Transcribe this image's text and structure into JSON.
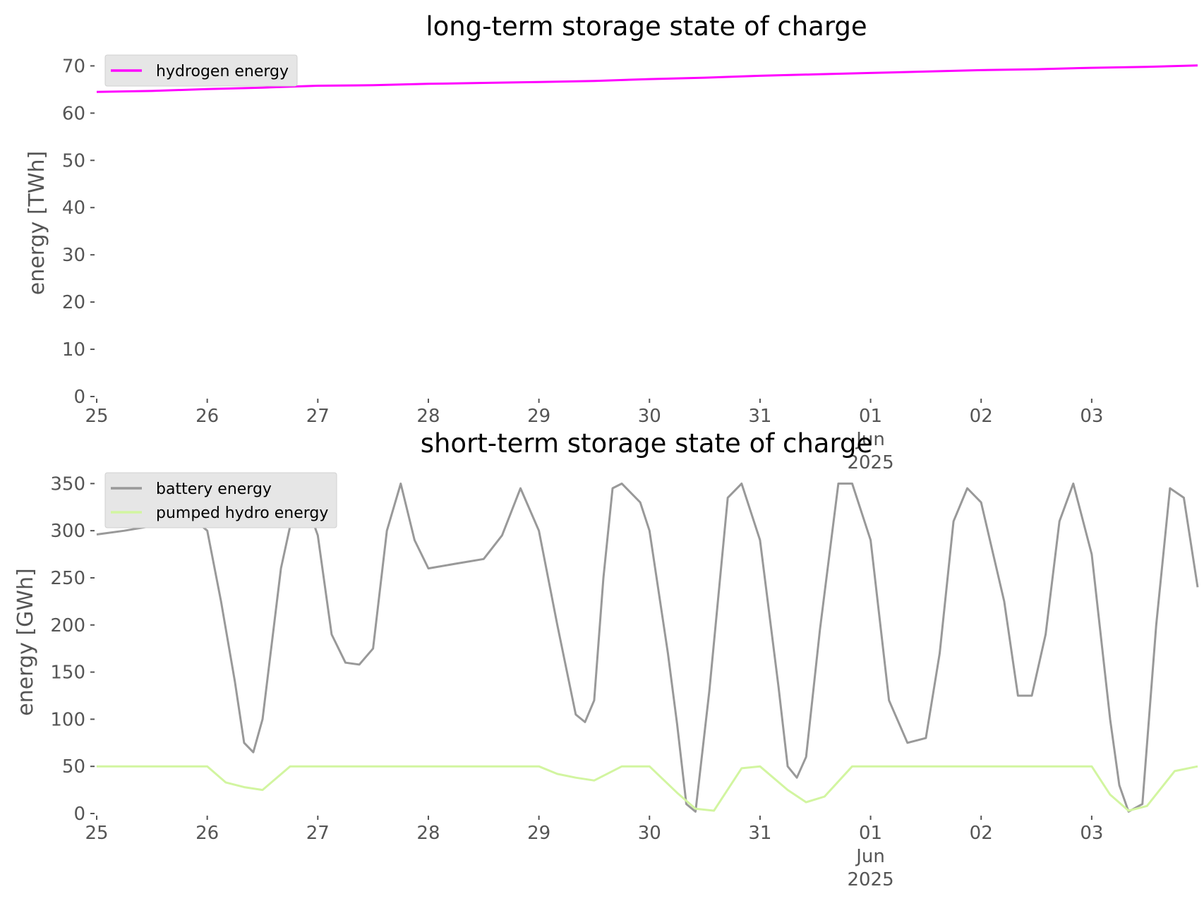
{
  "chart_data": [
    {
      "type": "line",
      "title": "long-term storage state of charge",
      "ylabel": "energy [TWh]",
      "xlabel": "",
      "ylim": [
        0,
        72
      ],
      "yticks": [
        0,
        10,
        20,
        30,
        40,
        50,
        60,
        70
      ],
      "xlim": [
        "2025-05-25",
        "2025-06-03T23:00"
      ],
      "xticks": [
        "25",
        "26",
        "27",
        "28",
        "29",
        "30",
        "31",
        "01\nJun\n2025",
        "02",
        "03"
      ],
      "grid": false,
      "legend_position": "upper-left",
      "series": [
        {
          "name": "hydrogen energy",
          "color": "#ff00ff",
          "x": [
            "2025-05-25",
            "2025-05-25T12:00",
            "2025-05-26",
            "2025-05-26T12:00",
            "2025-05-27",
            "2025-05-27T12:00",
            "2025-05-28",
            "2025-05-28T12:00",
            "2025-05-29",
            "2025-05-29T12:00",
            "2025-05-30",
            "2025-05-30T12:00",
            "2025-05-31",
            "2025-05-31T12:00",
            "2025-06-01",
            "2025-06-01T12:00",
            "2025-06-02",
            "2025-06-02T12:00",
            "2025-06-03",
            "2025-06-03T12:00",
            "2025-06-03T23:00"
          ],
          "y": [
            64.5,
            64.7,
            65.1,
            65.4,
            65.8,
            65.9,
            66.2,
            66.4,
            66.6,
            66.8,
            67.2,
            67.5,
            67.9,
            68.2,
            68.5,
            68.8,
            69.1,
            69.3,
            69.6,
            69.8,
            70.1
          ]
        }
      ]
    },
    {
      "type": "line",
      "title": "short-term storage state of charge",
      "ylabel": "energy [GWh]",
      "xlabel": "",
      "ylim": [
        0,
        360
      ],
      "yticks": [
        0,
        50,
        100,
        150,
        200,
        250,
        300,
        350
      ],
      "xlim": [
        "2025-05-25",
        "2025-06-03T23:00"
      ],
      "xticks": [
        "25",
        "26",
        "27",
        "28",
        "29",
        "30",
        "31",
        "01\nJun\n2025",
        "02",
        "03"
      ],
      "grid": false,
      "legend_position": "upper-left",
      "series": [
        {
          "name": "battery energy",
          "color": "#999999",
          "x": [
            "2025-05-25",
            "2025-05-25T06:00",
            "2025-05-25T12:00",
            "2025-05-25T18:00",
            "2025-05-26",
            "2025-05-26T03:00",
            "2025-05-26T06:00",
            "2025-05-26T08:00",
            "2025-05-26T10:00",
            "2025-05-26T12:00",
            "2025-05-26T16:00",
            "2025-05-26T20:00",
            "2025-05-27",
            "2025-05-27T03:00",
            "2025-05-27T06:00",
            "2025-05-27T09:00",
            "2025-05-27T12:00",
            "2025-05-27T15:00",
            "2025-05-27T18:00",
            "2025-05-27T21:00",
            "2025-05-28",
            "2025-05-28T06:00",
            "2025-05-28T12:00",
            "2025-05-28T16:00",
            "2025-05-28T20:00",
            "2025-05-29",
            "2025-05-29T04:00",
            "2025-05-29T08:00",
            "2025-05-29T10:00",
            "2025-05-29T12:00",
            "2025-05-29T14:00",
            "2025-05-29T16:00",
            "2025-05-29T18:00",
            "2025-05-29T22:00",
            "2025-05-30",
            "2025-05-30T04:00",
            "2025-05-30T06:00",
            "2025-05-30T08:00",
            "2025-05-30T10:00",
            "2025-05-30T13:00",
            "2025-05-30T17:00",
            "2025-05-30T20:00",
            "2025-05-31",
            "2025-05-31T04:00",
            "2025-05-31T06:00",
            "2025-05-31T08:00",
            "2025-05-31T10:00",
            "2025-05-31T13:00",
            "2025-05-31T17:00",
            "2025-05-31T20:00",
            "2025-06-01",
            "2025-06-01T04:00",
            "2025-06-01T08:00",
            "2025-06-01T12:00",
            "2025-06-01T15:00",
            "2025-06-01T18:00",
            "2025-06-01T21:00",
            "2025-06-02",
            "2025-06-02T05:00",
            "2025-06-02T08:00",
            "2025-06-02T11:00",
            "2025-06-02T14:00",
            "2025-06-02T17:00",
            "2025-06-02T20:00",
            "2025-06-03",
            "2025-06-03T04:00",
            "2025-06-03T06:00",
            "2025-06-03T08:00",
            "2025-06-03T11:00",
            "2025-06-03T14:00",
            "2025-06-03T17:00",
            "2025-06-03T20:00",
            "2025-06-03T23:00"
          ],
          "y": [
            296,
            300,
            305,
            325,
            300,
            225,
            140,
            75,
            65,
            100,
            260,
            350,
            295,
            190,
            160,
            158,
            175,
            300,
            350,
            290,
            260,
            265,
            270,
            295,
            345,
            300,
            200,
            105,
            97,
            120,
            250,
            345,
            350,
            330,
            300,
            170,
            95,
            10,
            2,
            130,
            335,
            350,
            290,
            135,
            50,
            38,
            60,
            195,
            350,
            350,
            290,
            120,
            75,
            80,
            170,
            310,
            345,
            330,
            225,
            125,
            125,
            190,
            310,
            350,
            275,
            100,
            30,
            2,
            10,
            200,
            345,
            335,
            240
          ]
        },
        {
          "name": "pumped hydro energy",
          "color": "#d2f5a0",
          "x": [
            "2025-05-25",
            "2025-05-26",
            "2025-05-26T04:00",
            "2025-05-26T08:00",
            "2025-05-26T12:00",
            "2025-05-26T18:00",
            "2025-05-27",
            "2025-05-29",
            "2025-05-29T04:00",
            "2025-05-29T08:00",
            "2025-05-29T12:00",
            "2025-05-29T18:00",
            "2025-05-30",
            "2025-05-30T06:00",
            "2025-05-30T10:00",
            "2025-05-30T14:00",
            "2025-05-30T20:00",
            "2025-05-31",
            "2025-05-31T06:00",
            "2025-05-31T10:00",
            "2025-05-31T14:00",
            "2025-05-31T20:00",
            "2025-06-01",
            "2025-06-02",
            "2025-06-03",
            "2025-06-03T04:00",
            "2025-06-03T08:00",
            "2025-06-03T12:00",
            "2025-06-03T18:00",
            "2025-06-03T23:00"
          ],
          "y": [
            50,
            50,
            33,
            28,
            25,
            50,
            50,
            50,
            42,
            38,
            35,
            50,
            50,
            22,
            5,
            3,
            48,
            50,
            25,
            12,
            18,
            50,
            50,
            50,
            50,
            20,
            3,
            8,
            45,
            50
          ]
        }
      ]
    }
  ]
}
